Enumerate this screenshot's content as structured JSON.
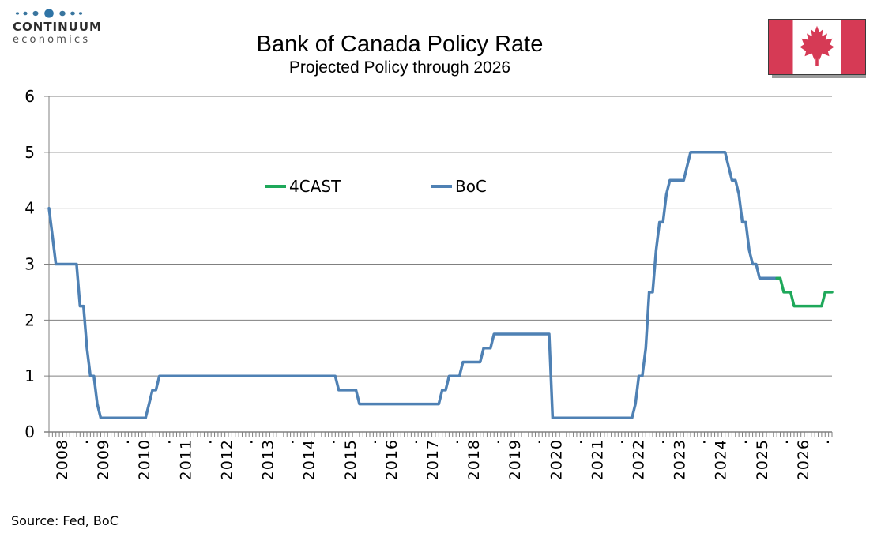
{
  "logo": {
    "line1": "CONTINUUM",
    "line2": "economics",
    "dot_color": "#39759e",
    "dot_color_center": "#2f74a6"
  },
  "header": {
    "title": "Bank of Canada Policy Rate",
    "subtitle": "Projected Policy through 2026"
  },
  "flag": {
    "name": "canada-flag",
    "red": "#d63a55",
    "white": "#ffffff"
  },
  "legend": {
    "items": [
      {
        "label": "4CAST",
        "series": "4CAST"
      },
      {
        "label": "BoC",
        "series": "BoC"
      }
    ]
  },
  "source": "Source: Fed, BoC",
  "chart_data": {
    "type": "line",
    "title": "Bank of Canada Policy Rate",
    "subtitle": "Projected Policy through 2026",
    "ylabel": "",
    "xlabel": "",
    "ylim": [
      0,
      6
    ],
    "yticks": [
      0,
      1,
      2,
      3,
      4,
      5,
      6
    ],
    "grid": true,
    "grid_color": "#808080",
    "legend_position": "inside-top",
    "x_range": [
      "2008-01",
      "2026-12"
    ],
    "x_frequency": "monthly",
    "x_tick_labels": [
      "2008",
      ".",
      "2009",
      ".",
      "2010",
      ".",
      "2011",
      ".",
      "2012",
      ".",
      "2013",
      ".",
      "2014",
      ".",
      "2015",
      ".",
      "2016",
      ".",
      "2017",
      ".",
      "2018",
      ".",
      "2019",
      ".",
      "2020",
      ".",
      "2021",
      ".",
      "2022",
      ".",
      "2023",
      ".",
      "2024",
      ".",
      "2025",
      ".",
      "2026",
      "."
    ],
    "series": [
      {
        "name": "BoC",
        "color": "#4f81b4",
        "start": "2008-01",
        "monthly_values": [
          4,
          3.5,
          3,
          3,
          3,
          3,
          3,
          3,
          3,
          2.25,
          2.25,
          1.5,
          1,
          1,
          0.5,
          0.25,
          0.25,
          0.25,
          0.25,
          0.25,
          0.25,
          0.25,
          0.25,
          0.25,
          0.25,
          0.25,
          0.25,
          0.25,
          0.25,
          0.5,
          0.75,
          0.75,
          1,
          1,
          1,
          1,
          1,
          1,
          1,
          1,
          1,
          1,
          1,
          1,
          1,
          1,
          1,
          1,
          1,
          1,
          1,
          1,
          1,
          1,
          1,
          1,
          1,
          1,
          1,
          1,
          1,
          1,
          1,
          1,
          1,
          1,
          1,
          1,
          1,
          1,
          1,
          1,
          1,
          1,
          1,
          1,
          1,
          1,
          1,
          1,
          1,
          1,
          1,
          1,
          0.75,
          0.75,
          0.75,
          0.75,
          0.75,
          0.75,
          0.5,
          0.5,
          0.5,
          0.5,
          0.5,
          0.5,
          0.5,
          0.5,
          0.5,
          0.5,
          0.5,
          0.5,
          0.5,
          0.5,
          0.5,
          0.5,
          0.5,
          0.5,
          0.5,
          0.5,
          0.5,
          0.5,
          0.5,
          0.5,
          0.75,
          0.75,
          1,
          1,
          1,
          1,
          1.25,
          1.25,
          1.25,
          1.25,
          1.25,
          1.25,
          1.5,
          1.5,
          1.5,
          1.75,
          1.75,
          1.75,
          1.75,
          1.75,
          1.75,
          1.75,
          1.75,
          1.75,
          1.75,
          1.75,
          1.75,
          1.75,
          1.75,
          1.75,
          1.75,
          1.75,
          0.25,
          0.25,
          0.25,
          0.25,
          0.25,
          0.25,
          0.25,
          0.25,
          0.25,
          0.25,
          0.25,
          0.25,
          0.25,
          0.25,
          0.25,
          0.25,
          0.25,
          0.25,
          0.25,
          0.25,
          0.25,
          0.25,
          0.25,
          0.25,
          0.5,
          1,
          1,
          1.5,
          2.5,
          2.5,
          3.25,
          3.75,
          3.75,
          4.25,
          4.5,
          4.5,
          4.5,
          4.5,
          4.5,
          4.75,
          5,
          5,
          5,
          5,
          5,
          5,
          5,
          5,
          5,
          5,
          5,
          4.75,
          4.5,
          4.5,
          4.25,
          3.75,
          3.75,
          3.25,
          3,
          3,
          2.75,
          2.75,
          2.75,
          2.75,
          2.75,
          2.75
        ]
      },
      {
        "name": "4CAST",
        "color": "#1ea85a",
        "start": "2025-08",
        "monthly_values": [
          2.75,
          2.75,
          2.5,
          2.5,
          2.5,
          2.25,
          2.25,
          2.25,
          2.25,
          2.25,
          2.25,
          2.25,
          2.25,
          2.25,
          2.5,
          2.5,
          2.5
        ]
      }
    ]
  }
}
